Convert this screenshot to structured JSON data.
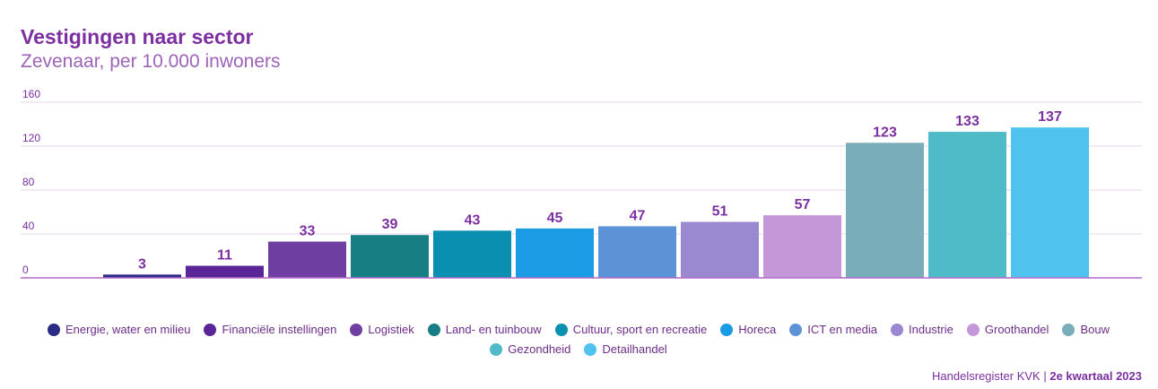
{
  "chart_data": {
    "type": "bar",
    "title": "Vestigingen naar sector",
    "subtitle": "Zevenaar, per 10.000 inwoners",
    "xlabel": "",
    "ylabel": "",
    "ylim": [
      0,
      160
    ],
    "yticks": [
      0,
      40,
      80,
      120,
      160
    ],
    "grid": true,
    "legend_position": "bottom",
    "categories": [
      "Energie, water en milieu",
      "Financiële instellingen",
      "Logistiek",
      "Land- en tuinbouw",
      "Cultuur, sport en recreatie",
      "Horeca",
      "ICT en media",
      "Industrie",
      "Groothandel",
      "Bouw",
      "Gezondheid",
      "Detailhandel"
    ],
    "values": [
      3,
      11,
      33,
      39,
      43,
      45,
      47,
      51,
      57,
      123,
      133,
      137
    ],
    "colors": [
      "#2b2a86",
      "#5a2596",
      "#6e3fa1",
      "#177e83",
      "#0a8fb0",
      "#1b9be3",
      "#5c92d6",
      "#9a88d0",
      "#c397d8",
      "#79adb9",
      "#4fbac8",
      "#4fc3ee"
    ]
  },
  "source": {
    "label": "Handelsregister KVK",
    "separator": "|",
    "period": "2e kwartaal 2023"
  },
  "colors": {
    "title": "#7b2fa0",
    "subtitle": "#9d63b8",
    "grid": "#e6d6ee",
    "axis": "#b06ac8"
  }
}
